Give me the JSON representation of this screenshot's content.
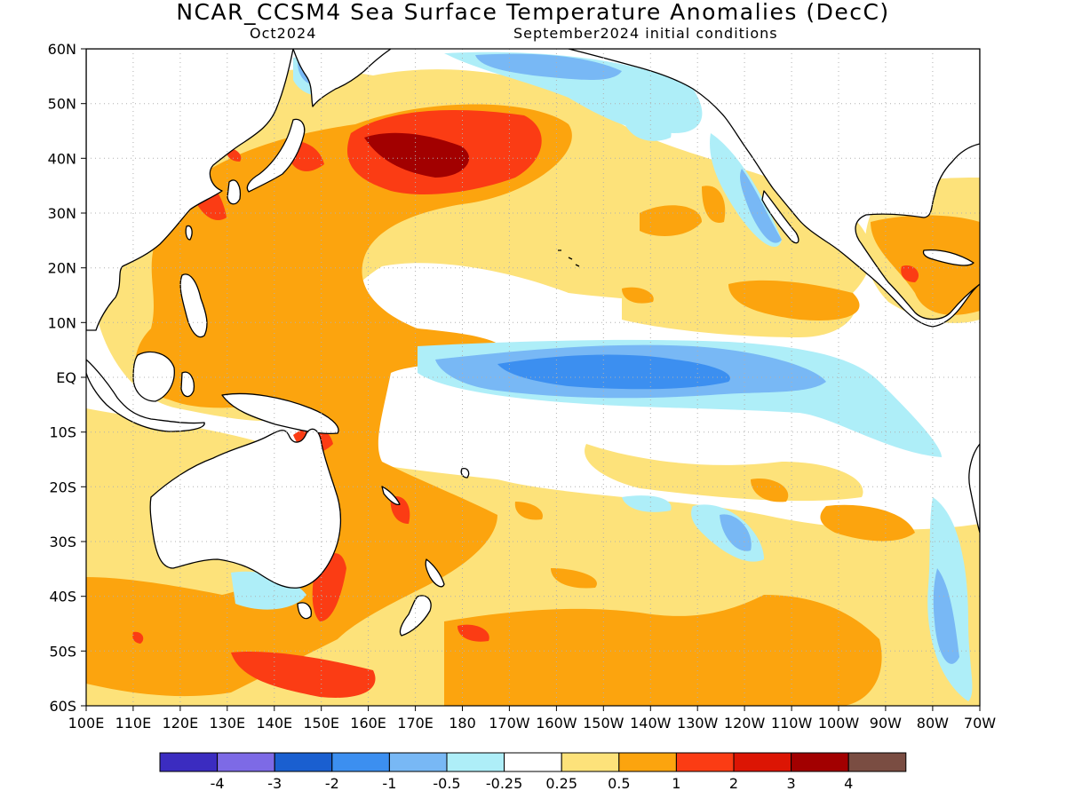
{
  "title": "NCAR_CCSM4 Sea Surface Temperature Anomalies (DecC)",
  "subtitle_left": "Oct2024",
  "subtitle_right": "September2024 initial conditions",
  "lat_labels": [
    "60N",
    "50N",
    "40N",
    "30N",
    "20N",
    "10N",
    "EQ",
    "10S",
    "20S",
    "30S",
    "40S",
    "50S",
    "60S"
  ],
  "lon_labels": [
    "100E",
    "110E",
    "120E",
    "130E",
    "140E",
    "150E",
    "160E",
    "170E",
    "180",
    "170W",
    "160W",
    "150W",
    "140W",
    "130W",
    "120W",
    "110W",
    "100W",
    "90W",
    "80W",
    "70W"
  ],
  "map_extent": {
    "lon_min": 100,
    "lon_max": 290,
    "lat_min": -60,
    "lat_max": 60
  },
  "colorbar": {
    "colors": [
      "#3b2cc0",
      "#7d6ae6",
      "#1a5fd0",
      "#3c8ff0",
      "#78b8f5",
      "#aeeef8",
      "#ffffff",
      "#fde27a",
      "#fca40e",
      "#fb3c14",
      "#dc1504",
      "#a20000",
      "#7a4d42"
    ],
    "labels": [
      "-4",
      "-3",
      "-2",
      "-1",
      "-0.5",
      "-0.25",
      "0.25",
      "0.5",
      "1",
      "2",
      "3",
      "4"
    ]
  }
}
